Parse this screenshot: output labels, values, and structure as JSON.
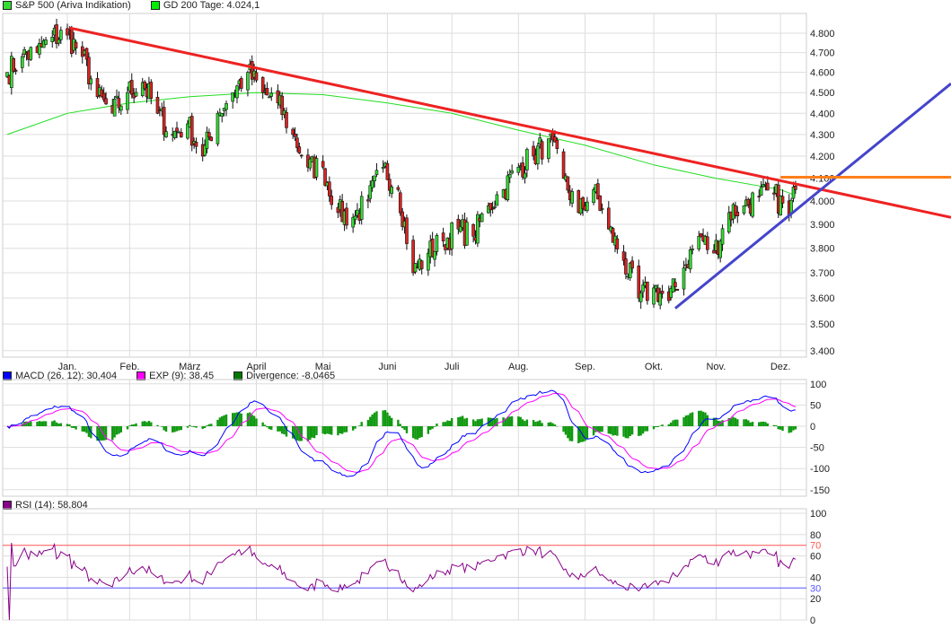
{
  "legend_main": [
    {
      "label": "S&P 500 (Ariva Indikation)",
      "color": "#33dd33"
    },
    {
      "label": "GD 200 Tage: 4.024,1",
      "color": "#00ee00"
    }
  ],
  "legend_macd": [
    {
      "label": "MACD (26, 12): 30,404",
      "color": "#0000ff"
    },
    {
      "label": "EXP (9): 38,45",
      "color": "#ff00ff"
    },
    {
      "label": "Divergence: -8,0465",
      "color": "#007700"
    }
  ],
  "legend_rsi": [
    {
      "label": "RSI (14): 58,804",
      "color": "#880088"
    }
  ],
  "chart_data": [
    {
      "type": "candlestick",
      "title": "S&P 500 (Ariva Indikation)",
      "y_scale": "log",
      "ylim": [
        3400,
        4800
      ],
      "y_ticks": [
        "4.800",
        "4.700",
        "4.600",
        "4.500",
        "4.400",
        "4.300",
        "4.200",
        "4.100",
        "4.000",
        "3.900",
        "3.800",
        "3.700",
        "3.600",
        "3.500",
        "3.400"
      ],
      "x_ticks": [
        {
          "label": "Jan.",
          "date": "2022-01-03"
        },
        {
          "label": "Feb.",
          "date": "2022-02-01"
        },
        {
          "label": "März",
          "date": "2022-03-01"
        },
        {
          "label": "April",
          "date": "2022-04-01"
        },
        {
          "label": "Mai",
          "date": "2022-05-02"
        },
        {
          "label": "Juni",
          "date": "2022-06-01"
        },
        {
          "label": "Juli",
          "date": "2022-07-01"
        },
        {
          "label": "Aug.",
          "date": "2022-08-01"
        },
        {
          "label": "Sep.",
          "date": "2022-09-01"
        },
        {
          "label": "Okt.",
          "date": "2022-10-03"
        },
        {
          "label": "Nov.",
          "date": "2022-11-01"
        },
        {
          "label": "Dez.",
          "date": "2022-12-01"
        }
      ],
      "grid": true,
      "up_color": "#33dd33",
      "down_color": "#dd2222",
      "weekly_closes": [
        [
          "2021-12-06",
          4600
        ],
        [
          "2021-12-13",
          4680
        ],
        [
          "2021-12-20",
          4700
        ],
        [
          "2021-12-27",
          4780
        ],
        [
          "2022-01-03",
          4790
        ],
        [
          "2022-01-10",
          4680
        ],
        [
          "2022-01-17",
          4480
        ],
        [
          "2022-01-24",
          4400
        ],
        [
          "2022-01-31",
          4500
        ],
        [
          "2022-02-07",
          4550
        ],
        [
          "2022-02-14",
          4400
        ],
        [
          "2022-02-21",
          4300
        ],
        [
          "2022-02-28",
          4350
        ],
        [
          "2022-03-07",
          4200
        ],
        [
          "2022-03-14",
          4400
        ],
        [
          "2022-03-21",
          4500
        ],
        [
          "2022-03-28",
          4600
        ],
        [
          "2022-04-04",
          4500
        ],
        [
          "2022-04-11",
          4450
        ],
        [
          "2022-04-18",
          4300
        ],
        [
          "2022-04-25",
          4150
        ],
        [
          "2022-05-02",
          4150
        ],
        [
          "2022-05-09",
          3950
        ],
        [
          "2022-05-16",
          3930
        ],
        [
          "2022-05-23",
          4000
        ],
        [
          "2022-05-30",
          4150
        ],
        [
          "2022-06-06",
          4050
        ],
        [
          "2022-06-13",
          3700
        ],
        [
          "2022-06-20",
          3780
        ],
        [
          "2022-06-27",
          3830
        ],
        [
          "2022-07-04",
          3880
        ],
        [
          "2022-07-11",
          3850
        ],
        [
          "2022-07-18",
          3980
        ],
        [
          "2022-07-25",
          4050
        ],
        [
          "2022-08-01",
          4150
        ],
        [
          "2022-08-08",
          4200
        ],
        [
          "2022-08-15",
          4280
        ],
        [
          "2022-08-22",
          4100
        ],
        [
          "2022-08-29",
          3950
        ],
        [
          "2022-09-05",
          4050
        ],
        [
          "2022-09-12",
          3880
        ],
        [
          "2022-09-19",
          3750
        ],
        [
          "2022-09-26",
          3600
        ],
        [
          "2022-10-03",
          3640
        ],
        [
          "2022-10-10",
          3590
        ],
        [
          "2022-10-17",
          3720
        ],
        [
          "2022-10-24",
          3850
        ],
        [
          "2022-10-31",
          3780
        ],
        [
          "2022-11-07",
          3950
        ],
        [
          "2022-11-14",
          3980
        ],
        [
          "2022-11-21",
          4020
        ],
        [
          "2022-11-28",
          4030
        ],
        [
          "2022-12-05",
          3940
        ],
        [
          "2022-12-08",
          4050
        ]
      ],
      "gd200": [
        [
          "2021-12-06",
          4300
        ],
        [
          "2022-01-03",
          4400
        ],
        [
          "2022-02-01",
          4450
        ],
        [
          "2022-03-01",
          4480
        ],
        [
          "2022-04-01",
          4500
        ],
        [
          "2022-05-02",
          4490
        ],
        [
          "2022-06-01",
          4450
        ],
        [
          "2022-07-01",
          4400
        ],
        [
          "2022-08-01",
          4320
        ],
        [
          "2022-09-01",
          4250
        ],
        [
          "2022-10-03",
          4160
        ],
        [
          "2022-11-01",
          4100
        ],
        [
          "2022-12-01",
          4050
        ],
        [
          "2022-12-08",
          4024.1
        ]
      ],
      "trendlines": [
        {
          "color": "#ee2222",
          "from": [
            "2022-01-04",
            4828
          ],
          "to": [
            "2022-12-08",
            4075
          ],
          "extend": "right"
        },
        {
          "color": "#4444cc",
          "from": [
            "2022-10-13",
            3560
          ],
          "to": [
            "2022-12-08",
            3960
          ],
          "extend": "right"
        },
        {
          "color": "#ff7f1a",
          "from": [
            "2022-12-01",
            4105
          ],
          "to": [
            "2022-12-08",
            4105
          ],
          "extend": "right"
        }
      ]
    },
    {
      "type": "line+bar",
      "indicator": "MACD",
      "ylim": [
        -150,
        100
      ],
      "y_ticks": [
        "100",
        "50",
        "0",
        "-50",
        "-100",
        "-150"
      ],
      "series": [
        {
          "name": "MACD (26, 12)",
          "last": 30.404
        },
        {
          "name": "EXP (9)",
          "last": 38.45
        },
        {
          "name": "Divergence",
          "last": -8.0465
        }
      ]
    },
    {
      "type": "line",
      "indicator": "RSI",
      "ylim": [
        0,
        100
      ],
      "y_ticks": [
        "100",
        "80",
        "60",
        "40",
        "20",
        "0"
      ],
      "levels": [
        {
          "label": "70",
          "value": 70,
          "color": "#ff5555"
        },
        {
          "label": "30",
          "value": 30,
          "color": "#5555ff"
        }
      ],
      "series": [
        {
          "name": "RSI (14)",
          "last": 58.804
        }
      ]
    }
  ]
}
